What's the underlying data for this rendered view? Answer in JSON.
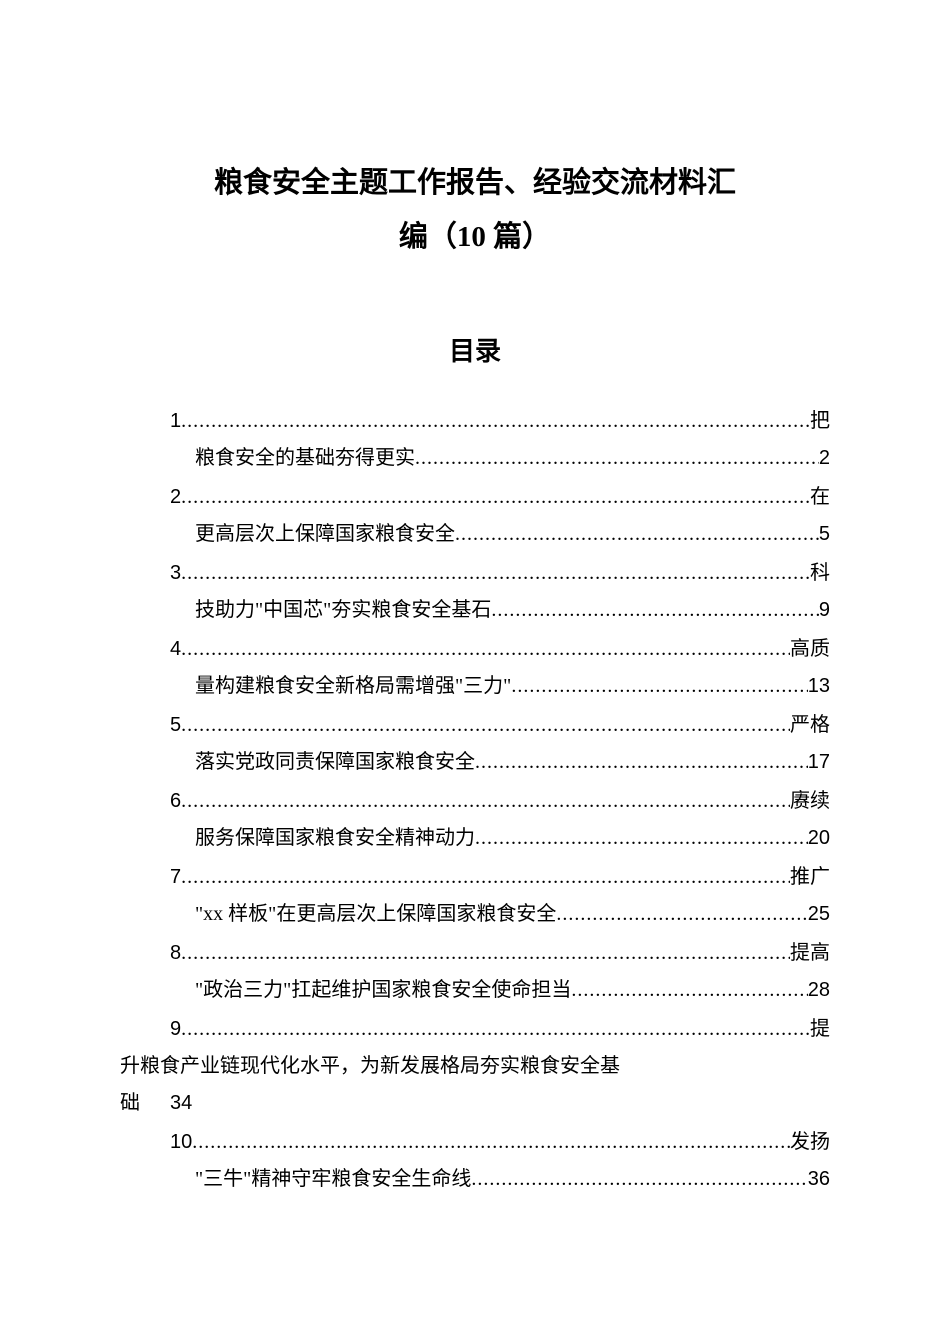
{
  "document": {
    "title_line1": "粮食安全主题工作报告、经验交流材料汇",
    "title_line2": "编（10 篇）",
    "toc_header": "目录",
    "background_color": "#ffffff",
    "text_color": "#000000",
    "title_fontsize": 29,
    "toc_header_fontsize": 26,
    "toc_fontsize": 20,
    "entries": [
      {
        "num": "1",
        "suffix": "把",
        "title": "粮食安全的基础夯得更实",
        "page": "2"
      },
      {
        "num": "2",
        "suffix": "在",
        "title": "更高层次上保障国家粮食安全",
        "page": "5"
      },
      {
        "num": "3",
        "suffix": "科",
        "title": "技助力\"中国芯\"夯实粮食安全基石",
        "page": "9"
      },
      {
        "num": "4",
        "suffix": "高质",
        "title": "量构建粮食安全新格局需增强\"三力\"",
        "page": "13"
      },
      {
        "num": "5",
        "suffix": "严格",
        "title": "落实党政同责保障国家粮食安全",
        "page": "17"
      },
      {
        "num": "6",
        "suffix": "赓续",
        "title": "服务保障国家粮食安全精神动力",
        "page": "20"
      },
      {
        "num": "7",
        "suffix": "推广",
        "title": "\"xx 样板\"在更高层次上保障国家粮食安全",
        "page": "25"
      },
      {
        "num": "8",
        "suffix": "提高",
        "title": "\"政治三力\"扛起维护国家粮食安全使命担当",
        "page": "28"
      },
      {
        "num": "9",
        "suffix": "提",
        "title_wrap1": "升粮食产业链现代化水平，为新发展格局夯实粮食安全基",
        "title_wrap2_char": "础",
        "page": "34",
        "is_wrapped": true
      },
      {
        "num": "10",
        "suffix": "发扬",
        "title": "\"三牛\"精神守牢粮食安全生命线",
        "page": "36"
      }
    ]
  }
}
